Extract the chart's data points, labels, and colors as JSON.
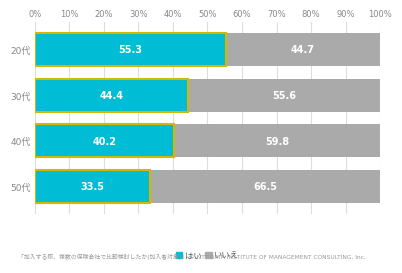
{
  "categories": [
    "20代",
    "30代",
    "40代",
    "50代"
  ],
  "yes_values": [
    55.3,
    44.4,
    40.2,
    33.5
  ],
  "no_values": [
    44.7,
    55.6,
    59.8,
    66.5
  ],
  "yes_color": "#00bcd4",
  "no_color": "#aaaaaa",
  "border_color": "#d4b800",
  "bar_height": 0.72,
  "xlim": [
    0,
    100
  ],
  "xtick_labels": [
    "0%",
    "10%",
    "20%",
    "30%",
    "40%",
    "50%",
    "60%",
    "70%",
    "80%",
    "90%",
    "100%"
  ],
  "xtick_values": [
    0,
    10,
    20,
    30,
    40,
    50,
    60,
    70,
    80,
    90,
    100
  ],
  "legend_yes": "はい",
  "legend_no": "いいえ",
  "footnote": "「加入する際、複数の保険会社で比較検討したか(加入者対象)」 © NTT DATA INSTITUTE OF MANAGEMENT CONSULTING, Inc.",
  "text_color": "#ffffff",
  "label_fontsize": 7,
  "tick_fontsize": 6,
  "ytick_fontsize": 6.5,
  "footnote_fontsize": 4.2,
  "legend_fontsize": 6,
  "background_color": "#ffffff",
  "plot_bg_color": "#ffffff",
  "grid_color": "#dddddd",
  "tick_color": "#888888",
  "border_lw": 1.5
}
